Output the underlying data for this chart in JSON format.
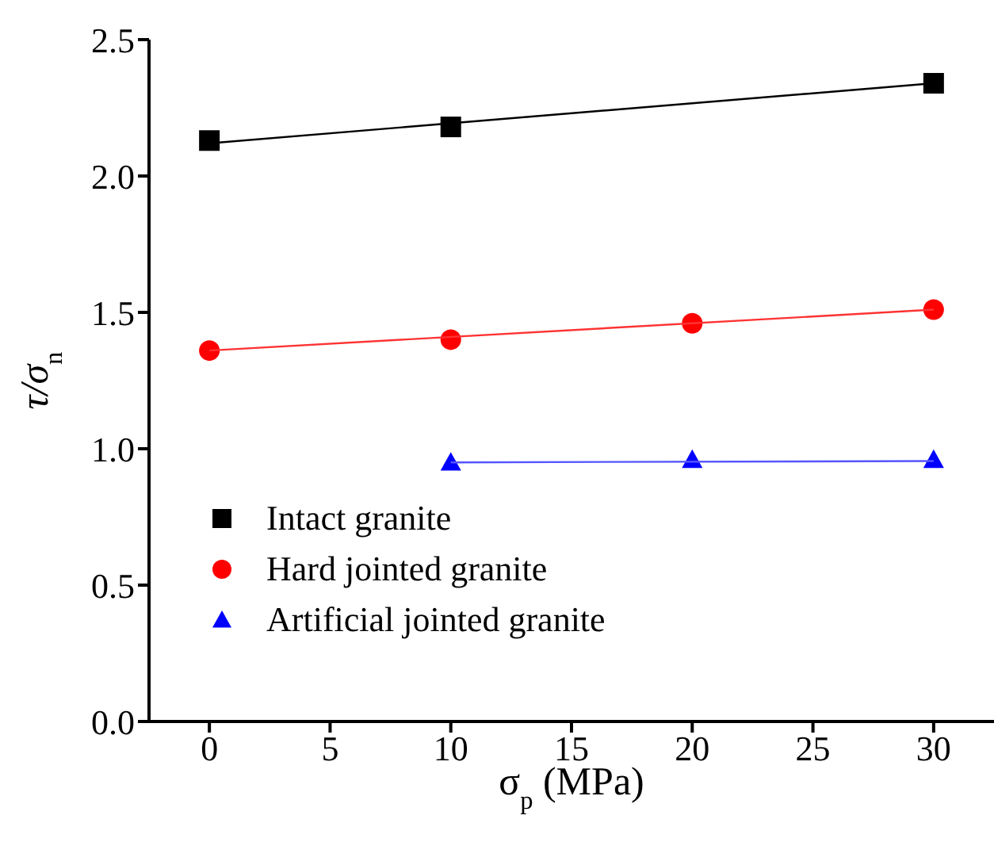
{
  "chart_data": {
    "type": "scatter",
    "xlabel": "σ$_{p}$ (MPa)",
    "ylabel": "τ/σ$_{n}$",
    "xlim": [
      -2.5,
      32.5
    ],
    "xticks": [
      0,
      5,
      10,
      15,
      20,
      25,
      30
    ],
    "ylim": [
      0,
      2.5
    ],
    "yticks": [
      {
        "value": 0,
        "label": "0.0"
      },
      {
        "value": 0.5,
        "label": "0.5"
      },
      {
        "value": 1,
        "label": "1.0"
      },
      {
        "value": 1.5,
        "label": "1.5"
      },
      {
        "value": 2,
        "label": "2.0"
      },
      {
        "value": 2.5,
        "label": "2.5"
      }
    ],
    "grid": false,
    "legend": "bottom left",
    "series": [
      {
        "name": "Intact granite",
        "color": "#000000",
        "marker": "square",
        "x": [
          0,
          10,
          30
        ],
        "values": [
          2.13,
          2.18,
          2.34
        ]
      },
      {
        "name": "Hard jointed granite",
        "color": "#ff0000",
        "marker": "circle",
        "x": [
          0,
          10,
          20,
          30
        ],
        "values": [
          1.36,
          1.4,
          1.46,
          1.51
        ]
      },
      {
        "name": "Artificial jointed granite",
        "color": "#0000ff",
        "marker": "triangle",
        "x": [
          10,
          20,
          30
        ],
        "values": [
          0.95,
          0.96,
          0.96
        ]
      },
      {
        "type": "line",
        "color": "#000000",
        "marker": "none",
        "x": [
          0,
          30
        ],
        "values": [
          2.12,
          2.34
        ]
      },
      {
        "type": "line",
        "color": "#ff3333",
        "marker": "none",
        "x": [
          0,
          30
        ],
        "values": [
          1.36,
          1.51
        ]
      },
      {
        "type": "line",
        "color": "#5555ff",
        "marker": "none",
        "x": [
          10,
          30
        ],
        "values": [
          0.95,
          0.955
        ]
      }
    ]
  }
}
